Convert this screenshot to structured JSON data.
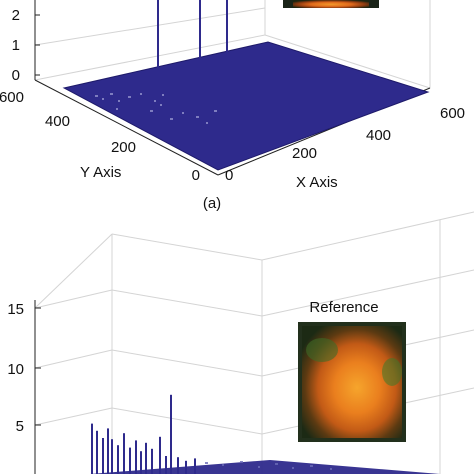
{
  "chart_data": [
    {
      "type": "surface",
      "panel_label": "(a)",
      "xlabel": "X Axis",
      "ylabel": "Y Axis",
      "z_ticks": [
        "0",
        "1",
        "2"
      ],
      "x_ticks": [
        "0",
        "200",
        "400",
        "600"
      ],
      "y_ticks": [
        "0",
        "200",
        "400",
        "600"
      ],
      "xlim": [
        0,
        600
      ],
      "ylim": [
        0,
        600
      ],
      "surface_color": "#2e2a8c",
      "peaks": [
        {
          "x": 230,
          "y": 470,
          "z": 2.6
        },
        {
          "x": 260,
          "y": 430,
          "z": 2.4
        },
        {
          "x": 300,
          "y": 420,
          "z": 2.7
        }
      ]
    },
    {
      "type": "surface",
      "z_ticks": [
        "5",
        "10",
        "15"
      ],
      "zlim": [
        0,
        15
      ],
      "surface_color": "#2e2a8c",
      "inset_label": "Reference",
      "spikes": [
        {
          "x": 92,
          "z": 4.2
        },
        {
          "x": 97,
          "z": 3.6
        },
        {
          "x": 103,
          "z": 3.0
        },
        {
          "x": 108,
          "z": 3.8
        },
        {
          "x": 112,
          "z": 2.9
        },
        {
          "x": 118,
          "z": 2.4
        },
        {
          "x": 124,
          "z": 3.4
        },
        {
          "x": 130,
          "z": 2.2
        },
        {
          "x": 136,
          "z": 2.8
        },
        {
          "x": 141,
          "z": 1.9
        },
        {
          "x": 146,
          "z": 2.6
        },
        {
          "x": 152,
          "z": 2.1
        },
        {
          "x": 160,
          "z": 3.1
        },
        {
          "x": 166,
          "z": 1.5
        },
        {
          "x": 171,
          "z": 6.6
        },
        {
          "x": 178,
          "z": 1.4
        },
        {
          "x": 186,
          "z": 1.1
        },
        {
          "x": 195,
          "z": 1.3
        }
      ]
    }
  ]
}
